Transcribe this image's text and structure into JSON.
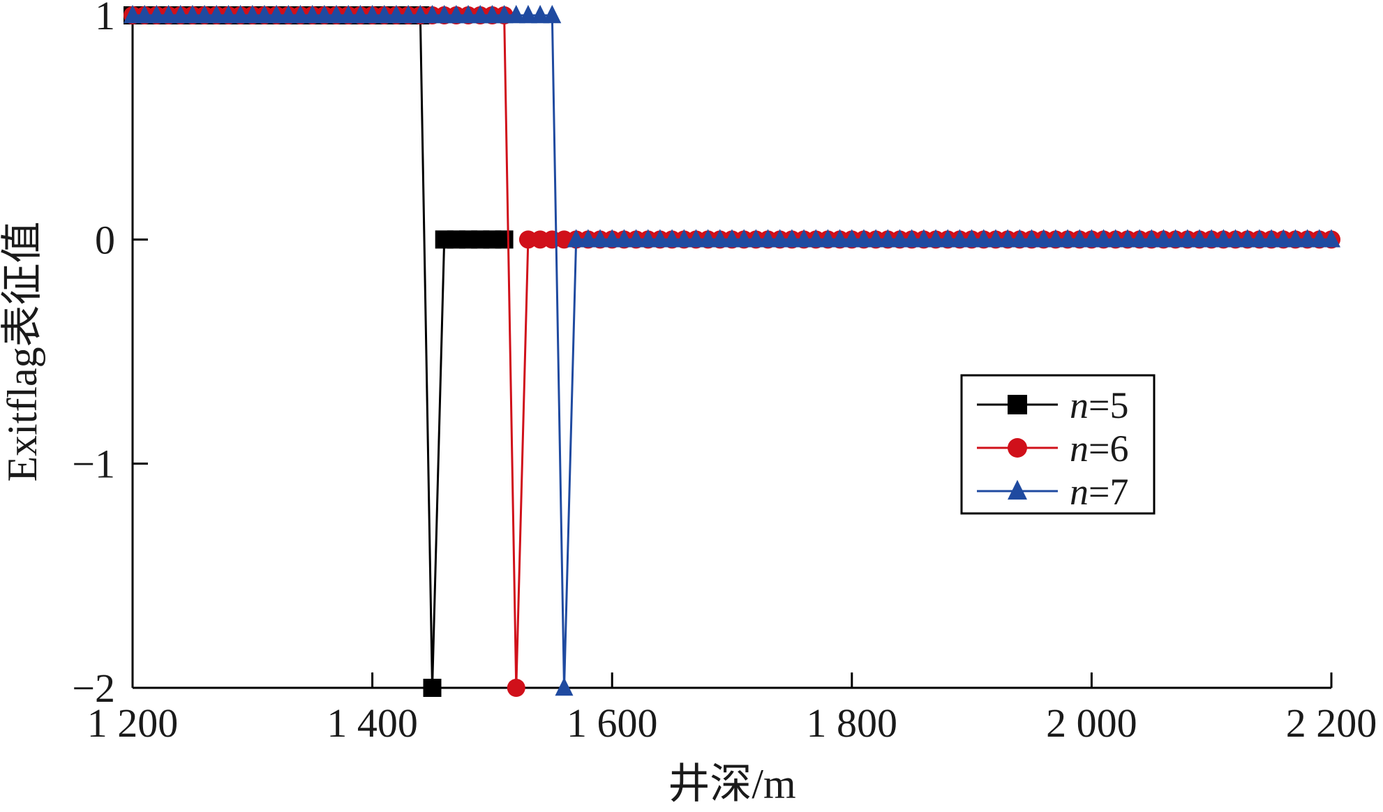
{
  "chart_data": {
    "type": "line",
    "xlabel": "井深/m",
    "ylabel": "Exitflag表征值",
    "xlim": [
      1200,
      2200
    ],
    "ylim": [
      -2,
      1
    ],
    "xticks": [
      1200,
      1400,
      1600,
      1800,
      2000,
      2200
    ],
    "xtick_labels": [
      "1 200",
      "1 400",
      "1 600",
      "1 800",
      "2 000",
      "2 200"
    ],
    "yticks": [
      -2,
      -1,
      0,
      1
    ],
    "ytick_labels": [
      "−2",
      "−1",
      "0",
      "1"
    ],
    "grid": false,
    "legend_position": "center-right",
    "series": [
      {
        "name": "n=5",
        "legend_prefix": "n",
        "legend_suffix": "=5",
        "color": "#000000",
        "marker": "square",
        "step": 10,
        "segments": [
          {
            "from": 1200,
            "to": 1440,
            "value": 1
          },
          {
            "from": 1450,
            "to": 1450,
            "value": -2
          },
          {
            "from": 1460,
            "to": 1460,
            "value": 0
          },
          {
            "from": 1460,
            "to": 1510,
            "value": 0
          }
        ],
        "x": [
          1200,
          1440,
          1450,
          1460,
          1510
        ],
        "y": [
          1,
          1,
          -2,
          0,
          0
        ]
      },
      {
        "name": "n=6",
        "legend_prefix": "n",
        "legend_suffix": "=6",
        "color": "#d0101a",
        "marker": "circle",
        "step": 10,
        "x": [
          1200,
          1510,
          1520,
          1530,
          2200
        ],
        "y": [
          1,
          1,
          -2,
          0,
          0
        ]
      },
      {
        "name": "n=7",
        "legend_prefix": "n",
        "legend_suffix": "=7",
        "color": "#1f4aa0",
        "marker": "triangle",
        "step": 10,
        "x": [
          1200,
          1550,
          1560,
          1570,
          2200
        ],
        "y": [
          1,
          1,
          -2,
          0,
          0
        ]
      }
    ]
  }
}
